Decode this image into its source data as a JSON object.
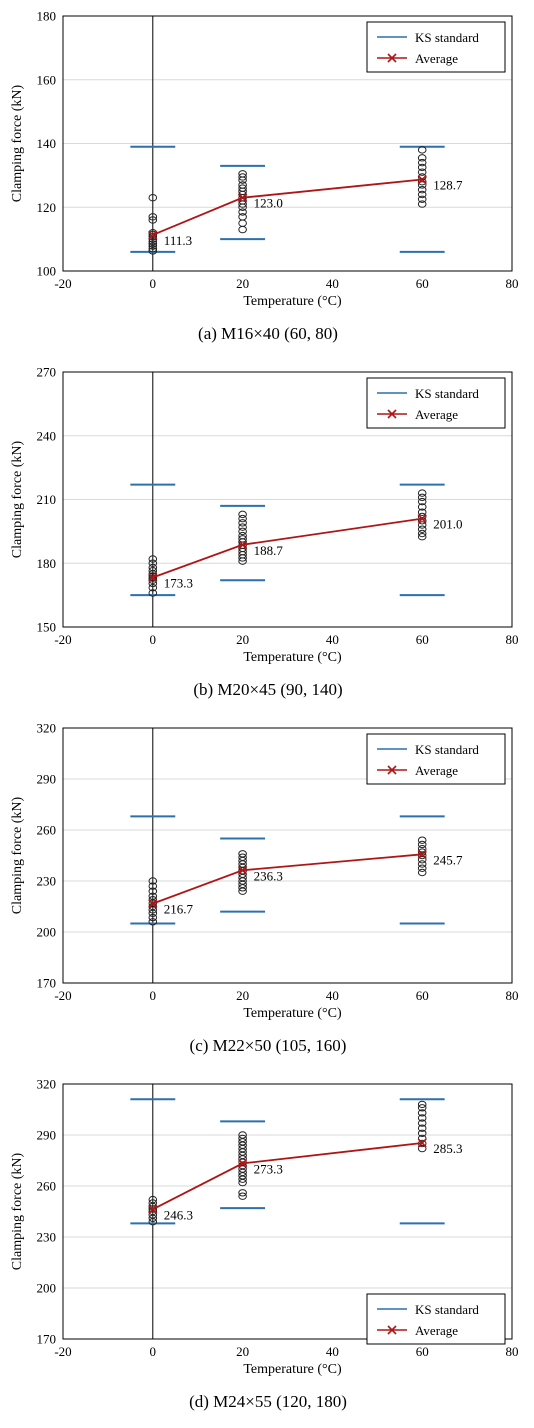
{
  "chart_data": [
    {
      "type": "scatter",
      "caption": "(a) M16×40 (60, 80)",
      "xlabel": "Temperature (°C)",
      "ylabel": "Clamping force (kN)",
      "xlim": [
        -20,
        80
      ],
      "ylim": [
        100,
        180
      ],
      "xticks": [
        -20,
        0,
        20,
        40,
        60,
        80
      ],
      "yticks": [
        100,
        120,
        140,
        160,
        180
      ],
      "legend_position": "top-right",
      "legend": [
        "KS standard",
        "Average"
      ],
      "ks_standard": [
        {
          "x": 0,
          "min": 106,
          "max": 139
        },
        {
          "x": 20,
          "min": 110,
          "max": 133
        },
        {
          "x": 60,
          "min": 106,
          "max": 139
        }
      ],
      "samples": [
        {
          "x": 0,
          "values": [
            106.3,
            107.0,
            107.8,
            108.5,
            109.2,
            110.0,
            110.8,
            111.5,
            112.0,
            116.0,
            117.0,
            123.0
          ]
        },
        {
          "x": 20,
          "values": [
            113.0,
            115.0,
            117.0,
            118.5,
            120.0,
            121.0,
            122.0,
            123.0,
            124.0,
            125.0,
            126.0,
            127.0,
            128.5,
            129.5,
            130.5
          ]
        },
        {
          "x": 60,
          "values": [
            121.0,
            122.5,
            124.0,
            125.5,
            127.0,
            128.0,
            129.5,
            131.0,
            132.5,
            134.0,
            135.5,
            138.0
          ]
        }
      ],
      "average": {
        "x": [
          0,
          20,
          60
        ],
        "y": [
          111.3,
          123.0,
          128.7
        ],
        "labels": [
          "111.3",
          "123.0",
          "128.7"
        ]
      },
      "colors": {
        "ks": "#2e6fae",
        "average": "#b01515"
      }
    },
    {
      "type": "scatter",
      "caption": "(b) M20×45 (90, 140)",
      "xlabel": "Temperature (°C)",
      "ylabel": "Clamping force (kN)",
      "xlim": [
        -20,
        80
      ],
      "ylim": [
        150,
        270
      ],
      "xticks": [
        -20,
        0,
        20,
        40,
        60,
        80
      ],
      "yticks": [
        150,
        180,
        210,
        240,
        270
      ],
      "legend_position": "top-right",
      "legend": [
        "KS standard",
        "Average"
      ],
      "ks_standard": [
        {
          "x": 0,
          "min": 165,
          "max": 217
        },
        {
          "x": 20,
          "min": 172,
          "max": 207
        },
        {
          "x": 60,
          "min": 165,
          "max": 217
        }
      ],
      "samples": [
        {
          "x": 0,
          "values": [
            166.0,
            168.5,
            170.5,
            172.0,
            173.0,
            174.0,
            175.0,
            176.5,
            178.0,
            180.0,
            182.0
          ]
        },
        {
          "x": 20,
          "values": [
            181.0,
            182.5,
            184.0,
            185.5,
            187.0,
            188.5,
            190.0,
            191.5,
            193.0,
            195.0,
            197.0,
            199.0,
            201.0,
            203.0
          ]
        },
        {
          "x": 60,
          "values": [
            192.5,
            194.0,
            196.0,
            198.0,
            200.0,
            202.0,
            204.0,
            206.5,
            209.0,
            211.0,
            213.0
          ]
        }
      ],
      "average": {
        "x": [
          0,
          20,
          60
        ],
        "y": [
          173.3,
          188.7,
          201.0
        ],
        "labels": [
          "173.3",
          "188.7",
          "201.0"
        ]
      },
      "colors": {
        "ks": "#2e6fae",
        "average": "#b01515"
      }
    },
    {
      "type": "scatter",
      "caption": "(c) M22×50 (105, 160)",
      "xlabel": "Temperature (°C)",
      "ylabel": "Clamping force (kN)",
      "xlim": [
        -20,
        80
      ],
      "ylim": [
        170,
        320
      ],
      "xticks": [
        -20,
        0,
        20,
        40,
        60,
        80
      ],
      "yticks": [
        170,
        200,
        230,
        260,
        290,
        320
      ],
      "legend_position": "top-right",
      "legend": [
        "KS standard",
        "Average"
      ],
      "ks_standard": [
        {
          "x": 0,
          "min": 205,
          "max": 268
        },
        {
          "x": 20,
          "min": 212,
          "max": 255
        },
        {
          "x": 60,
          "min": 205,
          "max": 268
        }
      ],
      "samples": [
        {
          "x": 0,
          "values": [
            206.0,
            208.5,
            211.0,
            213.0,
            215.0,
            217.0,
            219.0,
            221.0,
            224.0,
            227.0,
            230.0
          ]
        },
        {
          "x": 20,
          "values": [
            224.0,
            226.0,
            228.0,
            230.0,
            232.0,
            234.0,
            236.0,
            238.0,
            240.0,
            242.0,
            244.0,
            246.0
          ]
        },
        {
          "x": 60,
          "values": [
            235.0,
            237.5,
            240.0,
            242.5,
            245.0,
            247.0,
            249.0,
            251.5,
            254.0
          ]
        }
      ],
      "average": {
        "x": [
          0,
          20,
          60
        ],
        "y": [
          216.7,
          236.3,
          245.7
        ],
        "labels": [
          "216.7",
          "236.3",
          "245.7"
        ]
      },
      "colors": {
        "ks": "#2e6fae",
        "average": "#b01515"
      }
    },
    {
      "type": "scatter",
      "caption": "(d) M24×55 (120, 180)",
      "xlabel": "Temperature (°C)",
      "ylabel": "Clamping force (kN)",
      "xlim": [
        -20,
        80
      ],
      "ylim": [
        170,
        320
      ],
      "xticks": [
        -20,
        0,
        20,
        40,
        60,
        80
      ],
      "yticks": [
        170,
        200,
        230,
        260,
        290,
        320
      ],
      "legend_position": "bottom-right",
      "legend": [
        "KS standard",
        "Average"
      ],
      "ks_standard": [
        {
          "x": 0,
          "min": 238,
          "max": 311
        },
        {
          "x": 20,
          "min": 247,
          "max": 298
        },
        {
          "x": 60,
          "min": 238,
          "max": 311
        }
      ],
      "samples": [
        {
          "x": 0,
          "values": [
            239.0,
            241.0,
            243.0,
            245.0,
            246.5,
            248.0,
            250.0,
            252.0
          ]
        },
        {
          "x": 20,
          "values": [
            254.0,
            256.0,
            262.0,
            264.0,
            266.0,
            268.0,
            270.0,
            272.0,
            274.0,
            276.0,
            278.0,
            280.0,
            282.0,
            284.0,
            286.0,
            288.0,
            290.0
          ]
        },
        {
          "x": 60,
          "values": [
            282.0,
            285.0,
            288.0,
            291.0,
            294.0,
            297.0,
            300.0,
            303.0,
            306.0,
            308.0
          ]
        }
      ],
      "average": {
        "x": [
          0,
          20,
          60
        ],
        "y": [
          246.3,
          273.3,
          285.3
        ],
        "labels": [
          "246.3",
          "273.3",
          "285.3"
        ]
      },
      "colors": {
        "ks": "#2e6fae",
        "average": "#b01515"
      }
    }
  ]
}
